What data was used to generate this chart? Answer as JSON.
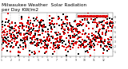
{
  "title": "Milwaukee Weather  Solar Radiation\nper Day KW/m2",
  "title_fontsize": 4.2,
  "background_color": "#ffffff",
  "plot_bg_color": "#ffffff",
  "grid_color": "#999999",
  "dot_size": 0.8,
  "ylim": [
    0,
    9
  ],
  "ytick_values": [
    1,
    2,
    3,
    4,
    5,
    6,
    7,
    8
  ],
  "num_points": 365,
  "color_red": "#dd0000",
  "color_black": "#111111",
  "month_days": [
    0,
    31,
    59,
    90,
    120,
    151,
    181,
    212,
    243,
    273,
    304,
    334,
    365
  ],
  "xtick_labels": [
    "1",
    "",
    "2",
    "",
    "3",
    "",
    "4",
    "",
    "5",
    "",
    "6",
    "",
    "7",
    "",
    "8",
    "",
    "9",
    "",
    "10",
    "",
    "11",
    "",
    "12",
    ""
  ]
}
